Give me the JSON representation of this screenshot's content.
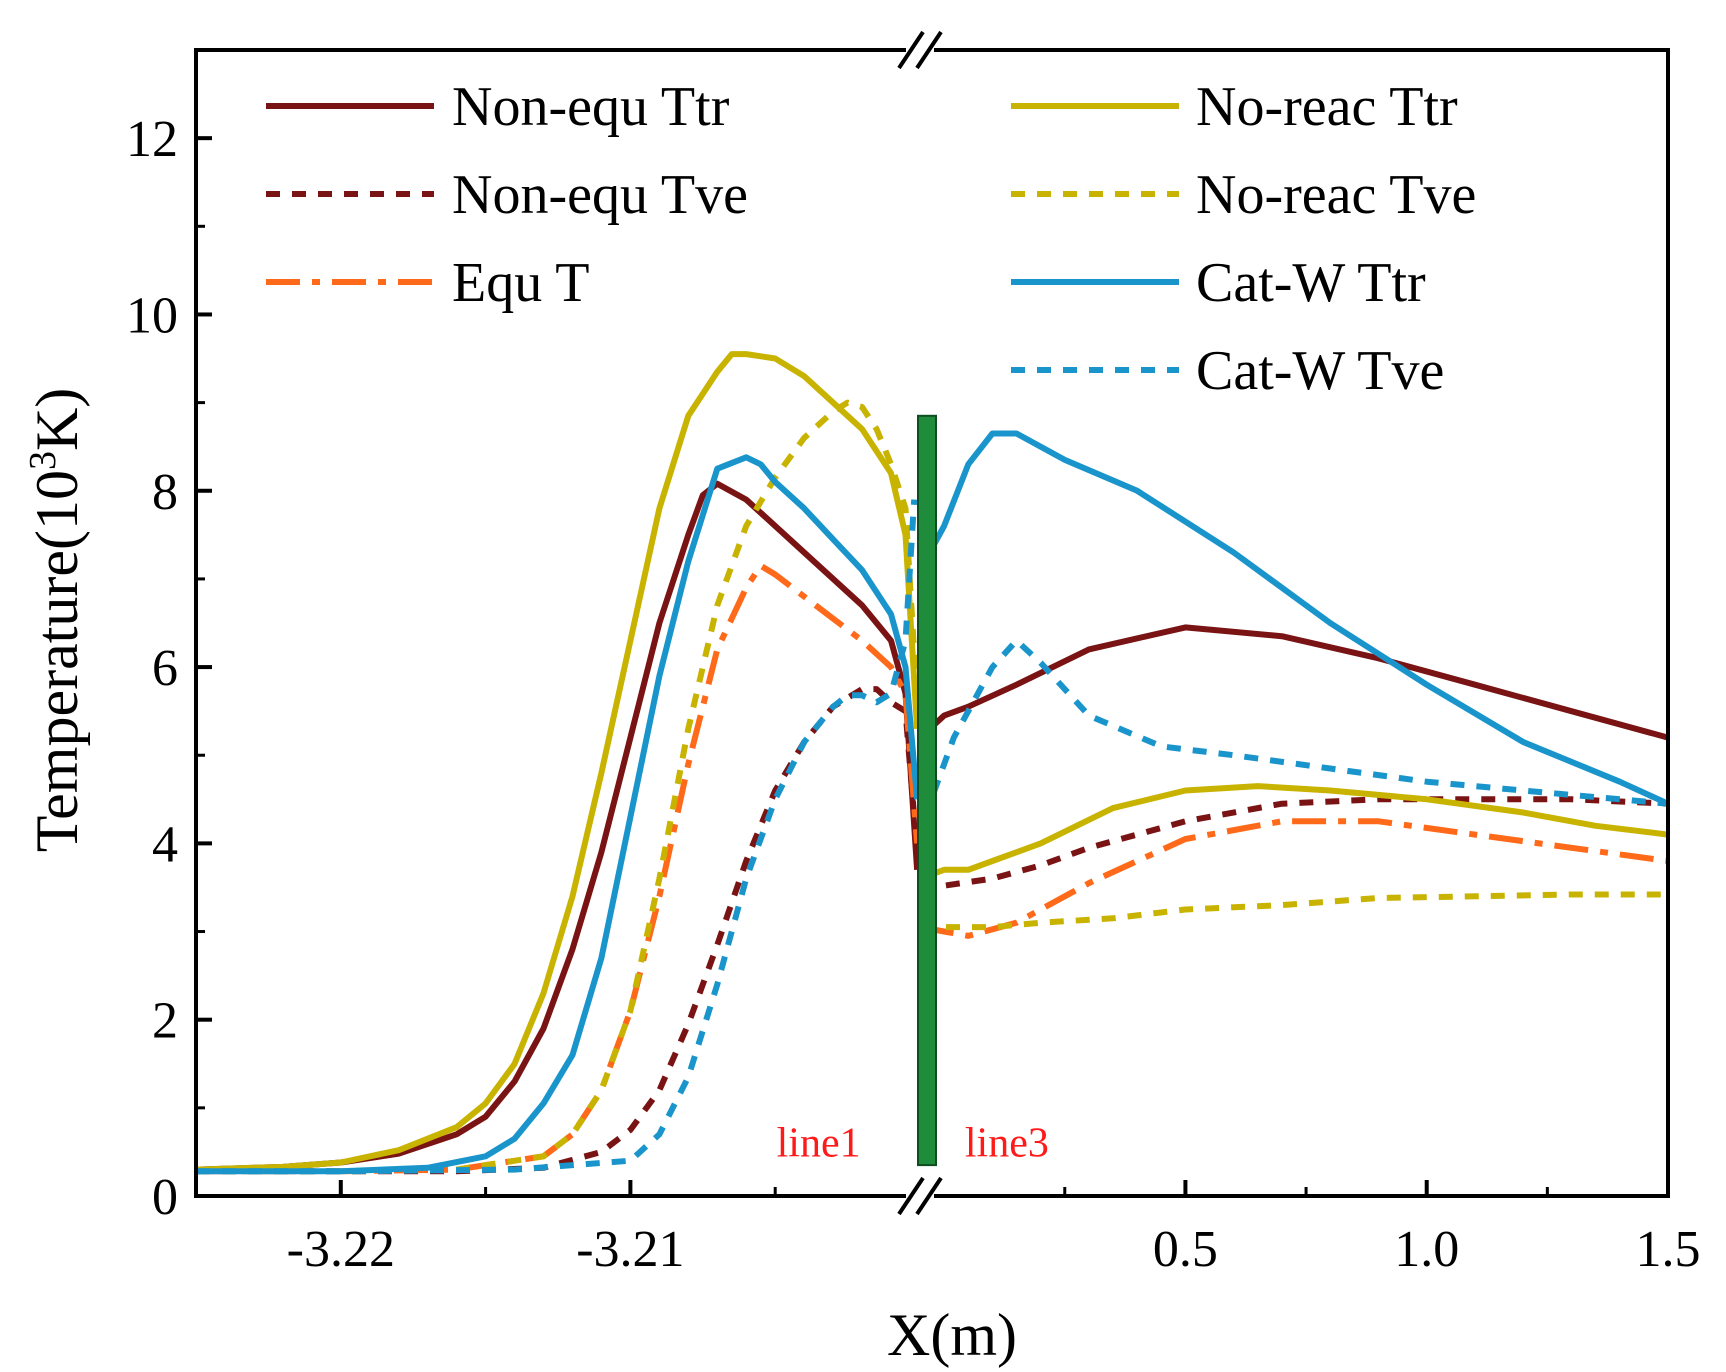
{
  "chart_data": {
    "type": "line",
    "title": "",
    "xlabel": "X(m)",
    "ylabel": "Temperature(10³K)",
    "ylim": [
      0,
      13
    ],
    "yticks": [
      {
        "value": 0,
        "label": "0"
      },
      {
        "value": 2,
        "label": "2"
      },
      {
        "value": 4,
        "label": "4"
      },
      {
        "value": 6,
        "label": "6"
      },
      {
        "value": 8,
        "label": "8"
      },
      {
        "value": 10,
        "label": "10"
      },
      {
        "value": 12,
        "label": "12"
      }
    ],
    "x_axis_broken": true,
    "x_segments": [
      {
        "name": "line1",
        "xlim": [
          -3.225,
          -3.2
        ]
      },
      {
        "name": "line3",
        "xlim": [
          -0.05,
          1.5
        ]
      }
    ],
    "xticks": [
      {
        "segment": 0,
        "value": -3.22,
        "label": "-3.22"
      },
      {
        "segment": 0,
        "value": -3.21,
        "label": "-3.21"
      },
      {
        "segment": 1,
        "value": 0.5,
        "label": "0.5"
      },
      {
        "segment": 1,
        "value": 1.0,
        "label": "1.0"
      },
      {
        "segment": 1,
        "value": 1.5,
        "label": "1.5"
      }
    ],
    "minor_xticks": [
      {
        "segment": 0,
        "value": -3.225
      },
      {
        "segment": 0,
        "value": -3.215
      },
      {
        "segment": 0,
        "value": -3.205
      },
      {
        "segment": 1,
        "value": 0.25
      },
      {
        "segment": 1,
        "value": 0.75
      },
      {
        "segment": 1,
        "value": 1.25
      }
    ],
    "annotations": [
      {
        "text": "line1",
        "segment": 0,
        "x": -3.2035,
        "y": 0.45,
        "color": "#ff1a1a"
      },
      {
        "text": "line3",
        "segment": 1,
        "x": 0.13,
        "y": 0.45,
        "color": "#ff1a1a"
      }
    ],
    "wall_marker": {
      "x_segment": 0,
      "x": -3.2,
      "y_range": [
        0.35,
        8.85
      ],
      "color": "#1e8c3a"
    },
    "legend_placement": "top, two columns",
    "grid": false,
    "series": [
      {
        "name": "Non-equ Ttr",
        "color": "#7a1414",
        "dash": "solid",
        "segments": [
          {
            "x": [
              -3.225,
              -3.222,
              -3.22,
              -3.218,
              -3.216,
              -3.215,
              -3.214,
              -3.213,
              -3.212,
              -3.211,
              -3.21,
              -3.209,
              -3.208,
              -3.2075,
              -3.207,
              -3.206,
              -3.205,
              -3.204,
              -3.203,
              -3.202,
              -3.201,
              -3.2005,
              -3.2001
            ],
            "y": [
              0.3,
              0.33,
              0.38,
              0.48,
              0.7,
              0.9,
              1.3,
              1.9,
              2.8,
              3.9,
              5.2,
              6.5,
              7.5,
              7.95,
              8.08,
              7.9,
              7.6,
              7.3,
              7.0,
              6.7,
              6.3,
              5.7,
              3.7
            ]
          },
          {
            "x": [
              -0.05,
              0.0,
              0.05,
              0.15,
              0.3,
              0.5,
              0.7,
              0.9,
              1.1,
              1.3,
              1.5
            ],
            "y": [
              5.2,
              5.45,
              5.55,
              5.8,
              6.2,
              6.45,
              6.35,
              6.1,
              5.8,
              5.5,
              5.2
            ]
          }
        ]
      },
      {
        "name": "Non-equ Tve",
        "color": "#7a1414",
        "dash": "short",
        "segments": [
          {
            "x": [
              -3.225,
              -3.22,
              -3.216,
              -3.213,
              -3.211,
              -3.21,
              -3.209,
              -3.208,
              -3.207,
              -3.206,
              -3.205,
              -3.204,
              -3.203,
              -3.202,
              -3.2015,
              -3.201,
              -3.2005,
              -3.2001
            ],
            "y": [
              0.28,
              0.28,
              0.28,
              0.32,
              0.5,
              0.75,
              1.2,
              1.95,
              2.85,
              3.8,
              4.6,
              5.15,
              5.55,
              5.75,
              5.75,
              5.6,
              5.5,
              3.9
            ]
          },
          {
            "x": [
              -0.05,
              0.0,
              0.1,
              0.2,
              0.3,
              0.5,
              0.7,
              0.9,
              1.1,
              1.3,
              1.5
            ],
            "y": [
              3.5,
              3.52,
              3.6,
              3.75,
              3.95,
              4.25,
              4.45,
              4.5,
              4.5,
              4.5,
              4.45
            ]
          }
        ]
      },
      {
        "name": "Equ T",
        "color": "#ff6a1a",
        "dash": "dashdot",
        "segments": [
          {
            "x": [
              -3.225,
              -3.22,
              -3.216,
              -3.213,
              -3.212,
              -3.211,
              -3.21,
              -3.209,
              -3.208,
              -3.207,
              -3.206,
              -3.2055,
              -3.205,
              -3.204,
              -3.203,
              -3.202,
              -3.201,
              -3.2005,
              -3.2001
            ],
            "y": [
              0.28,
              0.28,
              0.3,
              0.45,
              0.7,
              1.2,
              2.1,
              3.4,
              4.9,
              6.2,
              6.9,
              7.15,
              7.05,
              6.8,
              6.55,
              6.3,
              6.0,
              5.7,
              4.0
            ]
          },
          {
            "x": [
              -0.05,
              0.0,
              0.05,
              0.15,
              0.3,
              0.5,
              0.7,
              0.9,
              1.1,
              1.3,
              1.5
            ],
            "y": [
              3.05,
              3.0,
              2.95,
              3.1,
              3.55,
              4.05,
              4.25,
              4.25,
              4.1,
              3.95,
              3.8
            ]
          }
        ]
      },
      {
        "name": "No-reac Ttr",
        "color": "#c8b400",
        "dash": "solid",
        "segments": [
          {
            "x": [
              -3.225,
              -3.222,
              -3.22,
              -3.218,
              -3.216,
              -3.215,
              -3.214,
              -3.213,
              -3.212,
              -3.211,
              -3.21,
              -3.209,
              -3.208,
              -3.207,
              -3.2065,
              -3.206,
              -3.205,
              -3.204,
              -3.203,
              -3.202,
              -3.201,
              -3.2005,
              -3.2001
            ],
            "y": [
              0.3,
              0.33,
              0.38,
              0.52,
              0.78,
              1.05,
              1.5,
              2.3,
              3.4,
              4.8,
              6.3,
              7.8,
              8.85,
              9.35,
              9.55,
              9.55,
              9.5,
              9.3,
              9.0,
              8.7,
              8.2,
              7.5,
              5.3
            ]
          },
          {
            "x": [
              -0.05,
              0.0,
              0.05,
              0.1,
              0.2,
              0.35,
              0.5,
              0.65,
              0.8,
              1.0,
              1.2,
              1.35,
              1.5
            ],
            "y": [
              3.6,
              3.7,
              3.7,
              3.8,
              4.0,
              4.4,
              4.6,
              4.65,
              4.6,
              4.5,
              4.35,
              4.2,
              4.1
            ]
          }
        ]
      },
      {
        "name": "No-reac Tve",
        "color": "#c8b400",
        "dash": "short",
        "segments": [
          {
            "x": [
              -3.225,
              -3.22,
              -3.216,
              -3.213,
              -3.212,
              -3.211,
              -3.21,
              -3.209,
              -3.208,
              -3.207,
              -3.206,
              -3.205,
              -3.204,
              -3.203,
              -3.2025,
              -3.202,
              -3.2015,
              -3.201,
              -3.2005,
              -3.2001
            ],
            "y": [
              0.28,
              0.28,
              0.3,
              0.45,
              0.7,
              1.2,
              2.1,
              3.6,
              5.3,
              6.7,
              7.6,
              8.15,
              8.6,
              8.9,
              9.0,
              8.95,
              8.7,
              8.3,
              7.8,
              5.6
            ]
          },
          {
            "x": [
              -0.05,
              0.0,
              0.1,
              0.2,
              0.35,
              0.5,
              0.7,
              0.9,
              1.1,
              1.3,
              1.5
            ],
            "y": [
              3.05,
              3.05,
              3.05,
              3.1,
              3.15,
              3.25,
              3.3,
              3.38,
              3.4,
              3.42,
              3.42
            ]
          }
        ]
      },
      {
        "name": "Cat-W Ttr",
        "color": "#1a95cc",
        "dash": "solid",
        "segments": [
          {
            "x": [
              -3.225,
              -3.22,
              -3.217,
              -3.215,
              -3.214,
              -3.213,
              -3.212,
              -3.211,
              -3.21,
              -3.209,
              -3.208,
              -3.207,
              -3.206,
              -3.2055,
              -3.205,
              -3.204,
              -3.203,
              -3.202,
              -3.201,
              -3.2005,
              -3.2001
            ],
            "y": [
              0.28,
              0.28,
              0.32,
              0.45,
              0.65,
              1.05,
              1.6,
              2.7,
              4.3,
              5.9,
              7.2,
              8.25,
              8.38,
              8.3,
              8.1,
              7.8,
              7.45,
              7.1,
              6.6,
              6.0,
              4.5
            ]
          },
          {
            "x": [
              -0.05,
              0.0,
              0.05,
              0.1,
              0.15,
              0.25,
              0.4,
              0.6,
              0.8,
              1.0,
              1.2,
              1.4,
              1.5
            ],
            "y": [
              7.1,
              7.6,
              8.3,
              8.65,
              8.65,
              8.35,
              8.0,
              7.3,
              6.5,
              5.8,
              5.15,
              4.7,
              4.45
            ]
          }
        ]
      },
      {
        "name": "Cat-W Tve",
        "color": "#1a95cc",
        "dash": "short",
        "segments": [
          {
            "x": [
              -3.225,
              -3.22,
              -3.214,
              -3.21,
              -3.209,
              -3.208,
              -3.207,
              -3.206,
              -3.205,
              -3.204,
              -3.203,
              -3.2025,
              -3.202,
              -3.2015,
              -3.201,
              -3.2005,
              -3.2002
            ],
            "y": [
              0.28,
              0.28,
              0.3,
              0.4,
              0.7,
              1.35,
              2.4,
              3.6,
              4.5,
              5.15,
              5.55,
              5.68,
              5.68,
              5.6,
              5.7,
              6.3,
              7.9
            ]
          },
          {
            "x": [
              -0.05,
              -0.02,
              0.02,
              0.06,
              0.1,
              0.15,
              0.2,
              0.3,
              0.45,
              0.6,
              0.8,
              1.0,
              1.2,
              1.4,
              1.5
            ],
            "y": [
              4.0,
              4.6,
              5.2,
              5.6,
              6.0,
              6.3,
              6.05,
              5.45,
              5.1,
              5.0,
              4.85,
              4.7,
              4.6,
              4.5,
              4.45
            ]
          }
        ]
      }
    ]
  }
}
